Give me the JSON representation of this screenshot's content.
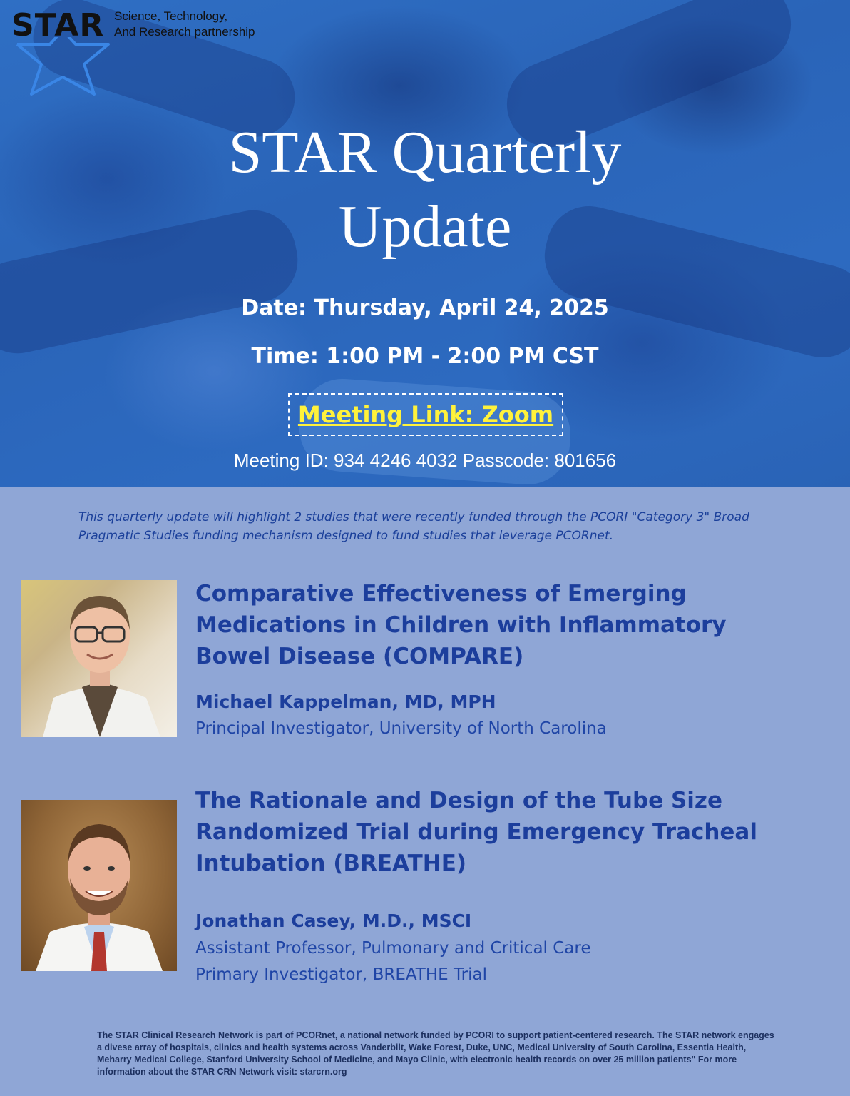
{
  "logo": {
    "wordmark": "STAR",
    "tagline_line1": "Science, Technology,",
    "tagline_line2": "And Research partnership",
    "icon": "star-outline-icon"
  },
  "hero": {
    "title_line1": "STAR Quarterly",
    "title_line2": "Update",
    "date": "Date: Thursday, April 24, 2025",
    "time": "Time: 1:00 PM - 2:00 PM CST",
    "meeting_link": "Meeting Link: Zoom",
    "meeting_id": "Meeting ID: 934 4246 4032 Passcode: 801656"
  },
  "intro": "This quarterly update will highlight 2 studies that were recently funded through the PCORI \"Category 3\" Broad Pragmatic Studies funding mechanism designed to fund studies that leverage PCORnet.",
  "talks": [
    {
      "title": "Comparative Effectiveness of Emerging Medications in Children with Inflammatory Bowel Disease (COMPARE)",
      "speaker": "Michael Kappelman, MD, MPH",
      "roles": [
        "Principal Investigator, University of North Carolina"
      ]
    },
    {
      "title": "The Rationale and Design of the Tube Size Randomized Trial during Emergency Tracheal Intubation (BREATHE)",
      "speaker": "Jonathan Casey, M.D., MSCI",
      "roles": [
        "Assistant Professor, Pulmonary and Critical Care",
        "Primary Investigator, BREATHE Trial"
      ]
    }
  ],
  "footer": "The STAR Clinical Research Network is part of PCORnet, a national network funded by PCORI to support patient-centered research. The STAR network engages a divese array of hospitals, clinics and health systems across Vanderbilt, Wake Forest, Duke, UNC, Medical University of South Carolina, Essentia Health, Meharry Medical College, Stanford University School of Medicine, and Mayo Clinic, with electronic health records on over 25 million patients\"   For more information about the STAR CRN Network visit: starcrn.org",
  "colors": {
    "hero_blue": "#2f6fc4",
    "body_blue": "#8fa6d6",
    "heading_blue": "#1c3e9c",
    "link_yellow": "#fff23b"
  }
}
